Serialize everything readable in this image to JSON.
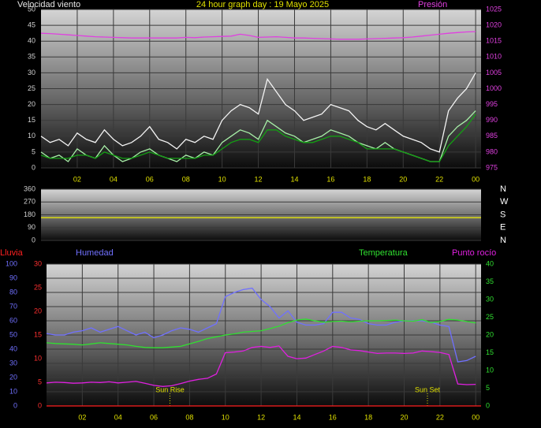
{
  "chart_data": [
    {
      "type": "line",
      "title": "24 hour graph day : 19 Mayo 2025",
      "ylabel": "Velocidad viento",
      "x": [
        0,
        0.5,
        1,
        1.5,
        2,
        2.5,
        3,
        3.5,
        4,
        4.5,
        5,
        5.5,
        6,
        6.5,
        7,
        7.5,
        8,
        8.5,
        9,
        9.5,
        10,
        10.5,
        11,
        11.5,
        12,
        12.5,
        13,
        13.5,
        14,
        14.5,
        15,
        15.5,
        16,
        16.5,
        17,
        17.5,
        18,
        18.5,
        19,
        19.5,
        20,
        20.5,
        21,
        21.5,
        22,
        22.5,
        23,
        23.5,
        24
      ],
      "xlim": [
        0,
        24.3
      ],
      "xticks": [
        {
          "value": 2,
          "label": "02"
        },
        {
          "value": 4,
          "label": "04"
        },
        {
          "value": 6,
          "label": "06"
        },
        {
          "value": 8,
          "label": "08"
        },
        10,
        12,
        14,
        16,
        18,
        20,
        22,
        {
          "value": 24,
          "label": "00"
        }
      ],
      "ylim": [
        0,
        50
      ],
      "yticks": [
        0,
        5,
        10,
        15,
        20,
        25,
        30,
        35,
        40,
        45,
        50
      ],
      "ycolor": "#d0d0d0",
      "y2lim": [
        975,
        1025
      ],
      "y2ticks": [
        975,
        980,
        985,
        990,
        995,
        1000,
        1005,
        1010,
        1015,
        1020,
        1025
      ],
      "y2color": "#e040e0",
      "grid": true,
      "series": [
        {
          "color": "#f4f4f4",
          "values": [
            10,
            8,
            9,
            7,
            11,
            9,
            8,
            12,
            9,
            7,
            8,
            10,
            13,
            9,
            8,
            6,
            9,
            8,
            10,
            9,
            15,
            18,
            20,
            19,
            17,
            28,
            24,
            20,
            18,
            15,
            16,
            17,
            20,
            19,
            18,
            15,
            13,
            12,
            14,
            12,
            10,
            9,
            8,
            6,
            5,
            18,
            22,
            25,
            30
          ]
        },
        {
          "color": "#a8f0a8",
          "values": [
            5,
            3,
            4,
            2,
            6,
            4,
            3,
            7,
            4,
            2,
            3,
            5,
            6,
            4,
            3,
            2,
            4,
            3,
            5,
            4,
            8,
            10,
            12,
            11,
            9,
            15,
            13,
            11,
            10,
            8,
            9,
            10,
            12,
            11,
            10,
            8,
            7,
            6,
            8,
            6,
            5,
            4,
            3,
            2,
            2,
            10,
            13,
            15,
            18
          ]
        },
        {
          "color": "#12a012",
          "values": [
            4,
            3,
            3,
            3,
            4,
            4,
            3,
            5,
            4,
            3,
            3,
            4,
            5,
            4,
            3,
            3,
            3,
            3,
            4,
            4,
            6,
            8,
            9,
            9,
            8,
            12,
            12,
            10,
            9,
            8,
            8,
            9,
            10,
            10,
            9,
            8,
            6,
            6,
            6,
            6,
            5,
            4,
            3,
            2,
            2,
            7,
            10,
            13,
            17
          ]
        },
        {
          "name": "Presión",
          "axis": "y2",
          "color": "#e040e0",
          "values": [
            1017.5,
            1017.4,
            1017.2,
            1017,
            1016.8,
            1016.6,
            1016.4,
            1016.3,
            1016.2,
            1016.1,
            1016,
            1016,
            1016,
            1016,
            1016,
            1016,
            1016.2,
            1016.1,
            1016.3,
            1016.4,
            1016.5,
            1016.6,
            1017.2,
            1016.8,
            1016.2,
            1016.3,
            1016.4,
            1016.2,
            1016,
            1016,
            1015.9,
            1015.8,
            1015.7,
            1015.6,
            1015.6,
            1015.6,
            1015.7,
            1015.8,
            1015.9,
            1016,
            1016.1,
            1016.3,
            1016.6,
            1016.9,
            1017.2,
            1017.5,
            1017.7,
            1017.9,
            1018
          ]
        }
      ]
    },
    {
      "type": "line",
      "x": [
        0,
        24.3
      ],
      "xlim": [
        0,
        24.3
      ],
      "ylim": [
        0,
        360
      ],
      "yticks": [
        0,
        90,
        180,
        270,
        360
      ],
      "ycolor": "#d0d0d0",
      "y2lim": [
        0,
        360
      ],
      "y2ticks": [
        {
          "value": 360,
          "label": "N"
        },
        {
          "value": 270,
          "label": "W"
        },
        {
          "value": 180,
          "label": "S"
        },
        {
          "value": 90,
          "label": "E"
        },
        {
          "value": 0,
          "label": "N"
        }
      ],
      "y2color": "#ffffff",
      "grid": true,
      "series": [
        {
          "color": "#f0f000",
          "values": [
            160,
            160
          ]
        }
      ]
    },
    {
      "type": "line",
      "x": [
        0,
        0.5,
        1,
        1.5,
        2,
        2.5,
        3,
        3.5,
        4,
        4.5,
        5,
        5.5,
        6,
        6.5,
        7,
        7.5,
        8,
        8.5,
        9,
        9.5,
        10,
        10.5,
        11,
        11.5,
        12,
        12.5,
        13,
        13.5,
        14,
        14.5,
        15,
        15.5,
        16,
        16.5,
        17,
        17.5,
        18,
        18.5,
        19,
        19.5,
        20,
        20.5,
        21,
        21.5,
        22,
        22.5,
        23,
        23.5,
        24
      ],
      "xlim": [
        0,
        24.3
      ],
      "xticks": [
        {
          "value": 2,
          "label": "02"
        },
        {
          "value": 4,
          "label": "04"
        },
        {
          "value": 6,
          "label": "06"
        },
        {
          "value": 8,
          "label": "08"
        },
        10,
        12,
        14,
        16,
        18,
        20,
        22,
        {
          "value": 24,
          "label": "00"
        }
      ],
      "ylim": [
        0,
        100
      ],
      "yticks": [
        0,
        10,
        20,
        30,
        40,
        50,
        60,
        70,
        80,
        90,
        100
      ],
      "ycolor": "#7070ff",
      "y3lim": [
        0,
        30
      ],
      "y3ticks": [
        0,
        5,
        10,
        15,
        20,
        25,
        30
      ],
      "y3color": "#ff3030",
      "y2lim": [
        0,
        40
      ],
      "y2ticks": [
        0,
        5,
        10,
        15,
        20,
        25,
        30,
        35,
        40
      ],
      "y2color": "#30e030",
      "grid": true,
      "annotations": [
        {
          "text": "Sun Rise",
          "x": 6.9
        },
        {
          "text": "Sun Set",
          "x": 21.3
        }
      ],
      "series": [
        {
          "name": "Lluvia",
          "axis": "y3",
          "color": "#ff2020",
          "x": [
            0,
            24.3
          ],
          "values": [
            0,
            0
          ]
        },
        {
          "name": "Humedad",
          "axis": "y",
          "color": "#7070ff",
          "values": [
            51,
            50,
            50,
            52,
            53,
            55,
            52,
            54,
            56,
            53,
            50,
            52,
            48,
            50,
            53,
            55,
            54,
            52,
            55,
            58,
            77,
            80,
            82,
            83,
            75,
            70,
            62,
            67,
            59,
            57,
            57,
            58,
            66,
            66,
            62,
            61,
            58,
            57,
            57,
            59,
            60,
            60,
            60,
            59,
            57,
            56,
            31,
            32,
            35
          ]
        },
        {
          "name": "Temperatura",
          "axis": "y2",
          "color": "#30e030",
          "values": [
            17.8,
            17.6,
            17.5,
            17.4,
            17.2,
            17.5,
            17.8,
            17.6,
            17.4,
            17.2,
            16.8,
            16.5,
            16.4,
            16.4,
            16.6,
            16.8,
            17.5,
            18.2,
            19,
            19.5,
            20,
            20.3,
            20.8,
            21,
            21.2,
            21.8,
            22.5,
            23.5,
            24.2,
            24.5,
            24,
            23.6,
            23.8,
            23.9,
            23.7,
            23.9,
            24,
            24,
            24.1,
            24.2,
            24,
            23.9,
            24.3,
            23.5,
            23.8,
            24.4,
            24.2,
            23.8,
            23.4
          ]
        },
        {
          "name": "Punto rocío",
          "axis": "y2",
          "color": "#e020e0",
          "values": [
            6.5,
            6.7,
            6.6,
            6.4,
            6.5,
            6.7,
            6.6,
            6.8,
            6.5,
            6.7,
            6.9,
            6.4,
            5.8,
            5.5,
            5.7,
            6.3,
            7,
            7.5,
            7.8,
            9,
            15,
            15.2,
            15.5,
            16.5,
            16.8,
            16.5,
            16.9,
            14,
            13.3,
            13.5,
            14.5,
            15.5,
            16.8,
            16.5,
            15.8,
            15.6,
            15.2,
            14.8,
            14.9,
            14.9,
            14.8,
            14.9,
            15.5,
            15.3,
            15.1,
            14.5,
            6.2,
            6,
            6.1
          ]
        }
      ]
    }
  ]
}
